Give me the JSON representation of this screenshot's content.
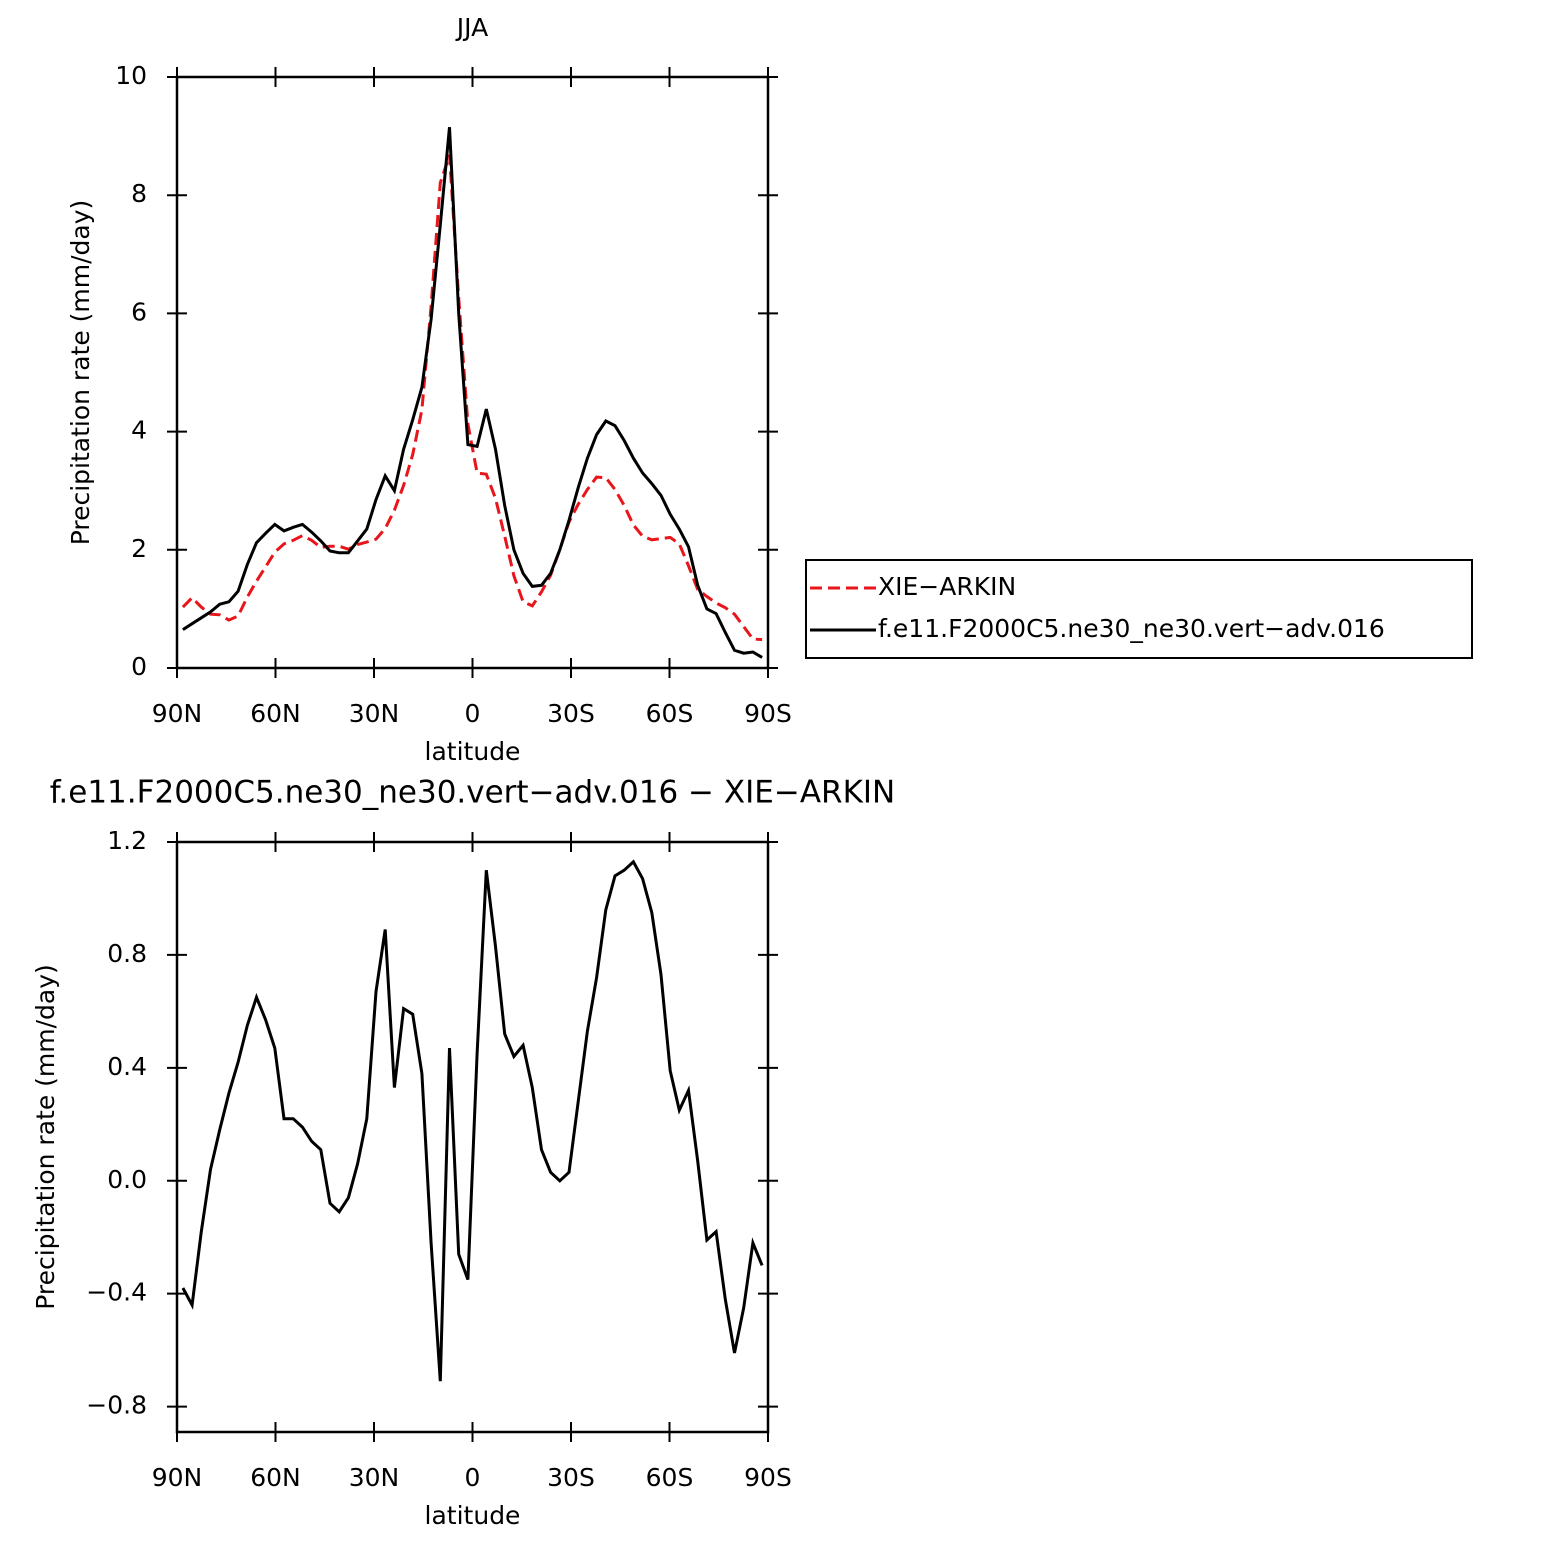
{
  "chart_data": [
    {
      "type": "line",
      "title": "JJA",
      "x_label": "latitude",
      "y_label": "Precipitation rate (mm/day)",
      "x": [
        88.2,
        85.4,
        82.6,
        79.8,
        77.0,
        74.2,
        71.4,
        68.6,
        65.8,
        63.0,
        60.2,
        57.4,
        54.6,
        51.8,
        49.0,
        46.2,
        43.4,
        40.6,
        37.8,
        35.0,
        32.2,
        29.4,
        26.6,
        23.8,
        21.0,
        18.2,
        15.4,
        12.6,
        9.8,
        7.0,
        4.2,
        1.4,
        -1.4,
        -4.2,
        -7.0,
        -9.8,
        -12.6,
        -15.4,
        -18.2,
        -21.0,
        -23.8,
        -26.6,
        -29.4,
        -32.2,
        -35.0,
        -37.8,
        -40.6,
        -43.4,
        -46.2,
        -49.0,
        -51.8,
        -54.6,
        -57.4,
        -60.2,
        -63.0,
        -65.8,
        -68.6,
        -71.4,
        -74.2,
        -77.0,
        -79.8,
        -82.6,
        -85.4,
        -88.2
      ],
      "series": [
        {
          "name": "XIE−ARKIN",
          "color": "#e8151b",
          "line_style": "dashed",
          "values": [
            1.03,
            1.19,
            1.03,
            0.91,
            0.9,
            0.81,
            0.88,
            1.2,
            1.47,
            1.71,
            1.96,
            2.1,
            2.16,
            2.24,
            2.16,
            2.04,
            2.06,
            2.06,
            2.01,
            2.09,
            2.13,
            2.18,
            2.36,
            2.67,
            3.09,
            3.61,
            4.37,
            6.12,
            8.21,
            8.68,
            6.26,
            4.13,
            3.3,
            3.28,
            2.87,
            2.23,
            1.56,
            1.12,
            1.05,
            1.29,
            1.57,
            2.0,
            2.47,
            2.77,
            3.02,
            3.23,
            3.22,
            3.02,
            2.75,
            2.42,
            2.23,
            2.17,
            2.19,
            2.21,
            2.1,
            1.73,
            1.33,
            1.21,
            1.1,
            1.02,
            0.91,
            0.7,
            0.49,
            0.48
          ]
        },
        {
          "name": "f.e11.F2000C5.ne30_ne30.vert−adv.016",
          "color": "#000000",
          "line_style": "solid",
          "values": [
            0.65,
            0.75,
            0.85,
            0.95,
            1.08,
            1.12,
            1.3,
            1.75,
            2.12,
            2.28,
            2.43,
            2.32,
            2.38,
            2.43,
            2.3,
            2.15,
            1.98,
            1.95,
            1.95,
            2.15,
            2.35,
            2.85,
            3.25,
            3.0,
            3.7,
            4.2,
            4.75,
            5.9,
            7.5,
            9.15,
            6.0,
            3.78,
            3.75,
            4.38,
            3.7,
            2.75,
            2.0,
            1.6,
            1.38,
            1.4,
            1.6,
            2.0,
            2.5,
            3.05,
            3.55,
            3.95,
            4.18,
            4.1,
            3.85,
            3.55,
            3.3,
            3.12,
            2.92,
            2.6,
            2.35,
            2.05,
            1.4,
            1.0,
            0.92,
            0.6,
            0.3,
            0.25,
            0.27,
            0.18
          ]
        }
      ],
      "xlim": [
        90,
        -90
      ],
      "xticks": [
        {
          "value": 90,
          "label": "90N"
        },
        {
          "value": 60,
          "label": "60N"
        },
        {
          "value": 30,
          "label": "30N"
        },
        0,
        {
          "value": -30,
          "label": "30S"
        },
        {
          "value": -60,
          "label": "60S"
        },
        {
          "value": -90,
          "label": "90S"
        }
      ],
      "ylim": [
        0,
        10
      ],
      "yticks": [
        0,
        2,
        4,
        6,
        8,
        10
      ],
      "legend": "right"
    },
    {
      "type": "line",
      "title": "f.e11.F2000C5.ne30_ne30.vert−adv.016 − XIE−ARKIN",
      "x_label": "latitude",
      "y_label": "Precipitation rate (mm/day)",
      "x": [
        88.2,
        85.4,
        82.6,
        79.8,
        77.0,
        74.2,
        71.4,
        68.6,
        65.8,
        63.0,
        60.2,
        57.4,
        54.6,
        51.8,
        49.0,
        46.2,
        43.4,
        40.6,
        37.8,
        35.0,
        32.2,
        29.4,
        26.6,
        23.8,
        21.0,
        18.2,
        15.4,
        12.6,
        9.8,
        7.0,
        4.2,
        1.4,
        -1.4,
        -4.2,
        -7.0,
        -9.8,
        -12.6,
        -15.4,
        -18.2,
        -21.0,
        -23.8,
        -26.6,
        -29.4,
        -32.2,
        -35.0,
        -37.8,
        -40.6,
        -43.4,
        -46.2,
        -49.0,
        -51.8,
        -54.6,
        -57.4,
        -60.2,
        -63.0,
        -65.8,
        -68.6,
        -71.4,
        -74.2,
        -77.0,
        -79.8,
        -82.6,
        -85.4,
        -88.2
      ],
      "values": [
        -0.38,
        -0.44,
        -0.18,
        0.04,
        0.18,
        0.31,
        0.42,
        0.55,
        0.65,
        0.57,
        0.47,
        0.22,
        0.22,
        0.19,
        0.14,
        0.11,
        -0.08,
        -0.11,
        -0.06,
        0.06,
        0.22,
        0.67,
        0.89,
        0.33,
        0.61,
        0.59,
        0.38,
        -0.22,
        -0.71,
        0.47,
        -0.26,
        -0.35,
        0.45,
        1.1,
        0.83,
        0.52,
        0.44,
        0.48,
        0.33,
        0.11,
        0.03,
        0.0,
        0.03,
        0.28,
        0.53,
        0.72,
        0.96,
        1.08,
        1.1,
        1.13,
        1.07,
        0.95,
        0.73,
        0.39,
        0.25,
        0.32,
        0.07,
        -0.21,
        -0.18,
        -0.42,
        -0.61,
        -0.45,
        -0.22,
        -0.3
      ],
      "color": "#000000",
      "xlim": [
        90,
        -90
      ],
      "xticks": [
        {
          "value": 90,
          "label": "90N"
        },
        {
          "value": 60,
          "label": "60N"
        },
        {
          "value": 30,
          "label": "30N"
        },
        0,
        {
          "value": -30,
          "label": "30S"
        },
        {
          "value": -60,
          "label": "60S"
        },
        {
          "value": -90,
          "label": "90S"
        }
      ],
      "ylim": [
        -0.89,
        1.2
      ],
      "yticks": [
        {
          "value": -0.8,
          "label": "−0.8"
        },
        {
          "value": -0.4,
          "label": "−0.4"
        },
        {
          "value": 0,
          "label": "0.0"
        },
        {
          "value": 0.4,
          "label": "0.4"
        },
        {
          "value": 0.8,
          "label": "0.8"
        },
        {
          "value": 1.2,
          "label": "1.2"
        }
      ]
    }
  ]
}
